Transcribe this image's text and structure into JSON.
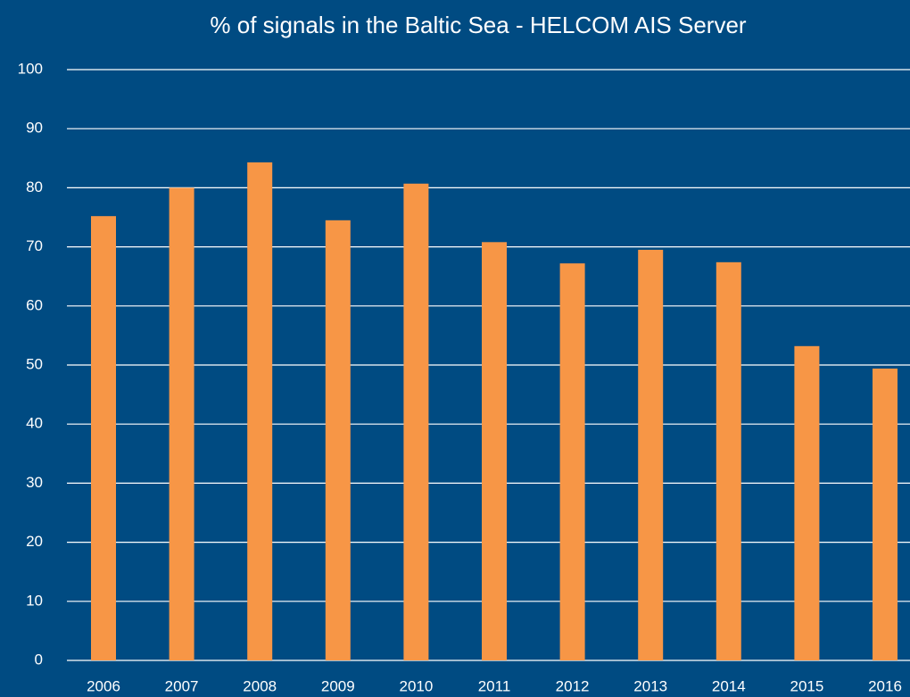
{
  "chart_data": {
    "type": "bar",
    "title": "% of signals in the Baltic Sea - HELCOM AIS Server",
    "categories": [
      "2006",
      "2007",
      "2008",
      "2009",
      "2010",
      "2011",
      "2012",
      "2013",
      "2014",
      "2015",
      "2016"
    ],
    "values": [
      75.2,
      80,
      84.3,
      74.5,
      80.7,
      70.8,
      67.2,
      69.5,
      67.4,
      53.2,
      49.4
    ],
    "color": "#f79646",
    "ylim": [
      0,
      100
    ],
    "yticks": [
      0,
      10,
      20,
      30,
      40,
      50,
      60,
      70,
      80,
      90,
      100
    ],
    "grid": true
  }
}
